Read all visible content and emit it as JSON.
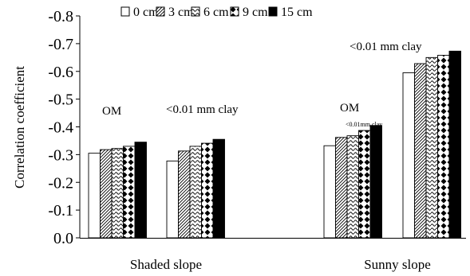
{
  "chart_data": {
    "type": "bar",
    "ylabel": "Correlation coefficient",
    "ylim": [
      0.0,
      -0.8
    ],
    "y_ticks": [
      "-0.8",
      "-0.7",
      "-0.6",
      "-0.5",
      "-0.4",
      "-0.3",
      "-0.2",
      "-0.1",
      "0.0"
    ],
    "y_tick_values": [
      -0.8,
      -0.7,
      -0.6,
      -0.5,
      -0.4,
      -0.3,
      -0.2,
      -0.1,
      0.0
    ],
    "grid": false,
    "legend_position": "top",
    "series_names": [
      "0 cm",
      "3 cm",
      "6 cm",
      "9 cm",
      "15 cm"
    ],
    "groups": [
      {
        "slope": "Shaded slope",
        "label": "OM",
        "values": [
          -0.305,
          -0.318,
          -0.322,
          -0.33,
          -0.345
        ]
      },
      {
        "slope": "Shaded slope",
        "label": "<0.01 mm clay",
        "values": [
          -0.277,
          -0.313,
          -0.33,
          -0.341,
          -0.355
        ]
      },
      {
        "slope": "Sunny slope",
        "label": "OM",
        "values": [
          -0.332,
          -0.362,
          -0.368,
          -0.387,
          -0.405
        ]
      },
      {
        "slope": "Sunny slope",
        "label": "<0.01 mm clay",
        "values": [
          -0.595,
          -0.628,
          -0.65,
          -0.658,
          -0.673
        ]
      }
    ],
    "annotations": [
      "OM",
      "<0.01 mm clay",
      "OM",
      "<0.01mm clay",
      "<0.01 mm clay"
    ],
    "x_group_labels": [
      "Shaded slope",
      "Sunny slope"
    ]
  }
}
